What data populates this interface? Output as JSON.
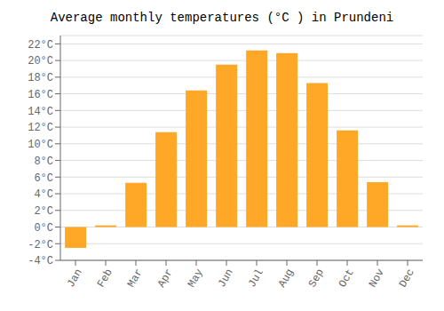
{
  "chart_data": {
    "type": "bar",
    "title": "Average monthly temperatures (°C ) in Prundeni",
    "categories": [
      "Jan",
      "Feb",
      "Mar",
      "Apr",
      "May",
      "Jun",
      "Jul",
      "Aug",
      "Sep",
      "Oct",
      "Nov",
      "Dec"
    ],
    "values": [
      -2.5,
      0.2,
      5.3,
      11.4,
      16.4,
      19.5,
      21.2,
      20.9,
      17.3,
      11.6,
      5.4,
      0.2
    ],
    "color": "#FFA726",
    "ylim": [
      -4,
      23
    ],
    "yticks": [
      {
        "value": -4,
        "label": "-4°C"
      },
      {
        "value": -2,
        "label": "-2°C"
      },
      {
        "value": 0,
        "label": "0°C"
      },
      {
        "value": 2,
        "label": "2°C"
      },
      {
        "value": 4,
        "label": "4°C"
      },
      {
        "value": 6,
        "label": "6°C"
      },
      {
        "value": 8,
        "label": "8°C"
      },
      {
        "value": 10,
        "label": "10°C"
      },
      {
        "value": 12,
        "label": "12°C"
      },
      {
        "value": 14,
        "label": "14°C"
      },
      {
        "value": 16,
        "label": "16°C"
      },
      {
        "value": 18,
        "label": "18°C"
      },
      {
        "value": 20,
        "label": "20°C"
      },
      {
        "value": 22,
        "label": "22°C"
      }
    ],
    "grid": true
  }
}
